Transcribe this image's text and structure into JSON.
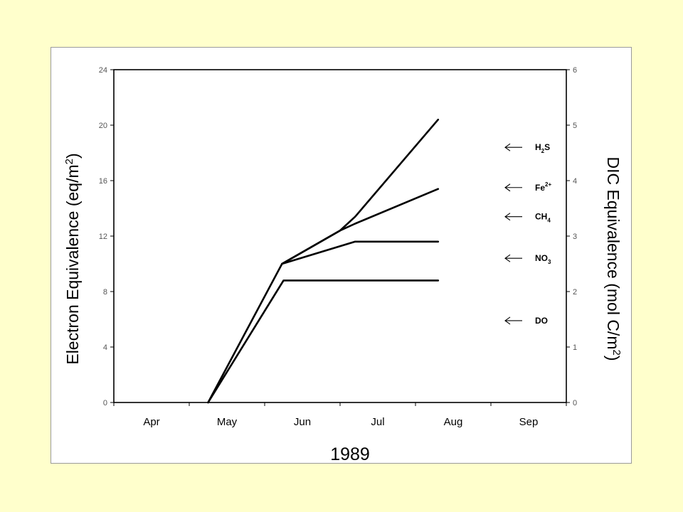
{
  "chart_data": {
    "type": "line",
    "xlabel": "1989",
    "ylabel_left": "Electron Equivalence (eq/m",
    "ylabel_left_sup": "2",
    "ylabel_left_end": ")",
    "ylabel_right": "DIC Equivalence (mol C/m",
    "ylabel_right_sup": "2",
    "ylabel_right_end": ")",
    "months": [
      "Apr",
      "May",
      "Jun",
      "Jul",
      "Aug",
      "Sep"
    ],
    "ylim_left": [
      0,
      24
    ],
    "yticks_left": [
      0,
      4,
      8,
      12,
      16,
      20,
      24
    ],
    "ylim_right": [
      0,
      6
    ],
    "yticks_right": [
      0,
      1,
      2,
      3,
      4,
      5,
      6
    ],
    "series": [
      {
        "points": [
          [
            1.25,
            0
          ],
          [
            2.25,
            8.8
          ],
          [
            4.3,
            8.8
          ]
        ]
      },
      {
        "points": [
          [
            1.25,
            0
          ],
          [
            2.23,
            10
          ],
          [
            3.2,
            11.6
          ],
          [
            4.3,
            11.6
          ]
        ]
      },
      {
        "points": [
          [
            2.23,
            10
          ],
          [
            3.0,
            12.4
          ],
          [
            3.2,
            12.9
          ],
          [
            4.3,
            15.4
          ]
        ]
      },
      {
        "points": [
          [
            2.23,
            10
          ],
          [
            3.0,
            12.4
          ],
          [
            3.2,
            13.4
          ],
          [
            4.3,
            20.4
          ]
        ]
      }
    ],
    "annotations": [
      {
        "base": "H",
        "sub": "2",
        "tail": "S",
        "sup": "",
        "y": 18.4
      },
      {
        "base": "Fe",
        "sub": "",
        "tail": "",
        "sup": "2+",
        "y": 15.5
      },
      {
        "base": "CH",
        "sub": "4",
        "tail": "",
        "sup": "",
        "y": 13.4
      },
      {
        "base": "NO",
        "sub": "3",
        "tail": "",
        "sup": "",
        "y": 10.4
      },
      {
        "base": "DO",
        "sub": "",
        "tail": "",
        "sup": "",
        "y": 5.9
      }
    ],
    "grid": false,
    "legend": "none"
  }
}
